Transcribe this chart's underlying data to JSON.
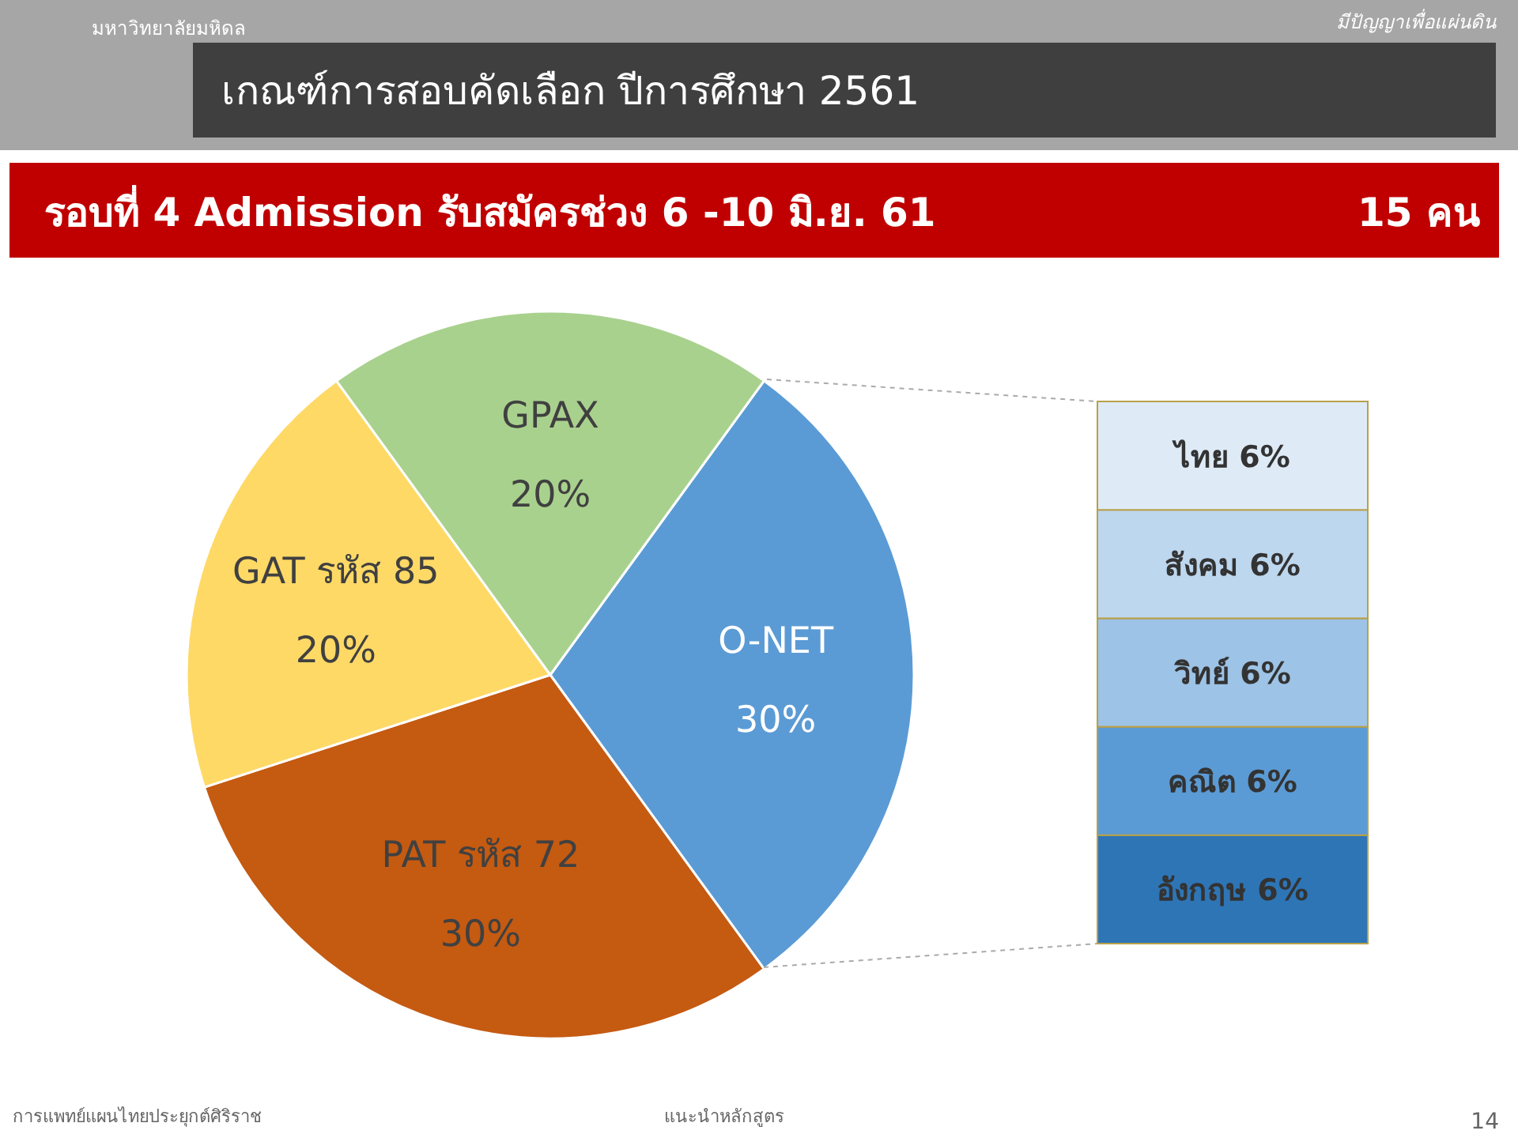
{
  "chart_data": [
    {
      "type": "pie",
      "title": "เกณฑ์การสอบคัดเลือก ปีการศึกษา 2561",
      "subtitle": "รอบที่ 4 Admission รับสมัครช่วง 6 -10 มิ.ย. 61",
      "annotations": [
        "15 คน",
        "มหาวิทยาลัยมหิดล",
        "มีปัญญาเพื่อแผ่นดิน",
        "การแพทย์แผนไทยประยุกต์ศิริราช",
        "แนะนำหลักสูตร",
        "14"
      ],
      "categories": [
        "O-NET",
        "PAT รหัส 72",
        "GAT รหัส 85",
        "GPAX"
      ],
      "values": [
        30,
        30,
        20,
        20
      ],
      "value_labels": [
        "30%",
        "30%",
        "20%",
        "20%"
      ],
      "colors": [
        "#5b9bd5",
        "#c55a11",
        "#ffd966",
        "#a9d18e"
      ]
    },
    {
      "type": "bar",
      "stacked": true,
      "categories": [
        null
      ],
      "series": [
        {
          "name": "อังกฤษ",
          "color": "#2e75b6",
          "values": [
            6
          ],
          "value_labels": [
            "6%"
          ]
        },
        {
          "name": "คณิต",
          "color": "#5b9bd5",
          "values": [
            6
          ],
          "value_labels": [
            "6%"
          ]
        },
        {
          "name": "วิทย์",
          "color": "#9dc3e6",
          "values": [
            6
          ],
          "value_labels": [
            "6%"
          ]
        },
        {
          "name": "สังคม",
          "color": "#bdd7ee",
          "values": [
            6
          ],
          "value_labels": [
            "6%"
          ]
        },
        {
          "name": "ไทย",
          "color": "#deebf7",
          "values": [
            6
          ],
          "value_labels": [
            "6%"
          ]
        }
      ]
    }
  ]
}
